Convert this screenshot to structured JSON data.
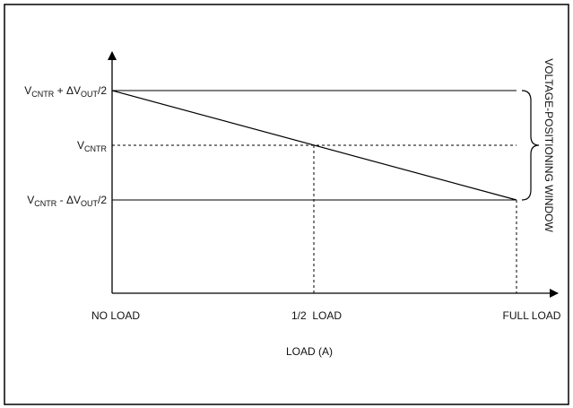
{
  "diagram": {
    "y_labels": {
      "upper": {
        "base": "V",
        "sub": "CNTR",
        "mid": " + ΔV",
        "sub2": "OUT",
        "tail": "/2"
      },
      "center": {
        "base": "V",
        "sub": "CNTR"
      },
      "lower": {
        "base": "V",
        "sub": "CNTR",
        "mid": " - ΔV",
        "sub2": "OUT",
        "tail": "/2"
      }
    },
    "x_ticks": [
      "NO LOAD",
      "1/2  LOAD",
      "FULL LOAD"
    ],
    "x_axis_title": "LOAD (A)",
    "window_label": "VOLTAGE-POSITIONING WINDOW"
  }
}
